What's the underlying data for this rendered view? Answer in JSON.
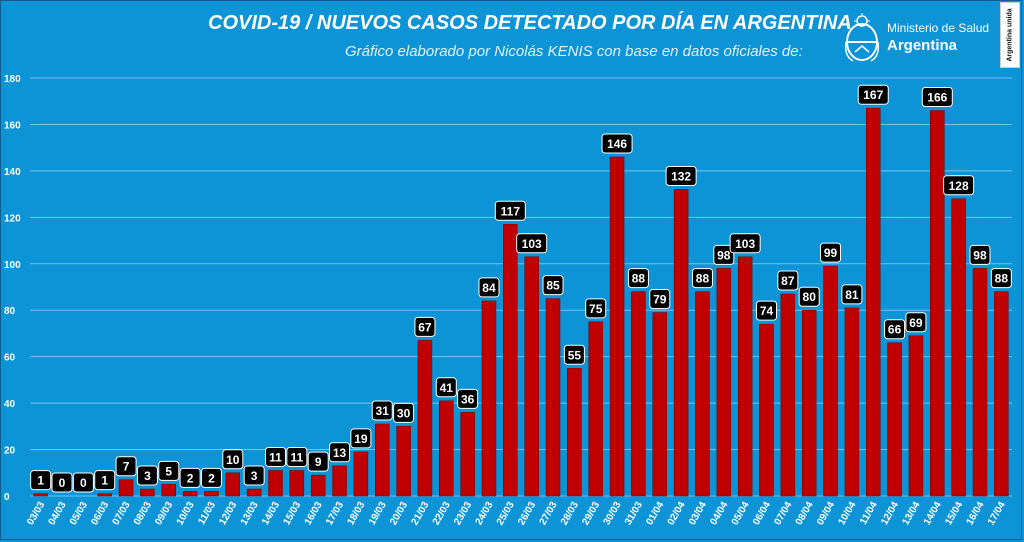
{
  "header": {
    "title": "COVID-19  /  NUEVOS CASOS DETECTADO POR DÍA EN ARGENTINA",
    "subtitle": "Gráfico elaborado por Nicolás KENIS con base en datos oficiales de:",
    "logo_ministry": "Ministerio de Salud",
    "logo_country": "Argentina",
    "badge": "Argentina unida"
  },
  "colors": {
    "background": "#0c94d6",
    "bar": "#c00000",
    "bar_border": "#7a0000",
    "label_box": "#000000",
    "gridline": "#6fc4ee"
  },
  "chart_data": {
    "type": "bar",
    "title": "COVID-19  /  NUEVOS CASOS DETECTADO POR DÍA EN ARGENTINA",
    "xlabel": "",
    "ylabel": "",
    "ylim": [
      0,
      180
    ],
    "yticks": [
      0,
      20,
      40,
      60,
      80,
      100,
      120,
      140,
      160,
      180
    ],
    "grid": true,
    "categories": [
      "03/03",
      "04/03",
      "05/03",
      "06/03",
      "07/03",
      "08/03",
      "09/03",
      "10/03",
      "11/03",
      "12/03",
      "13/03",
      "14/03",
      "15/03",
      "16/03",
      "17/03",
      "18/03",
      "19/03",
      "20/03",
      "21/03",
      "22/03",
      "23/03",
      "24/03",
      "25/03",
      "26/03",
      "27/03",
      "28/03",
      "29/03",
      "30/03",
      "31/03",
      "01/04",
      "02/04",
      "03/04",
      "04/04",
      "05/04",
      "06/04",
      "07/04",
      "08/04",
      "09/04",
      "10/04",
      "11/04",
      "12/04",
      "13/04",
      "14/04",
      "15/04",
      "16/04",
      "17/04"
    ],
    "values": [
      1,
      0,
      0,
      1,
      7,
      3,
      5,
      2,
      2,
      10,
      3,
      11,
      11,
      9,
      13,
      19,
      31,
      30,
      67,
      41,
      36,
      84,
      117,
      103,
      85,
      55,
      75,
      146,
      88,
      79,
      132,
      88,
      98,
      103,
      74,
      87,
      80,
      99,
      81,
      167,
      66,
      69,
      166,
      128,
      98,
      88
    ]
  }
}
